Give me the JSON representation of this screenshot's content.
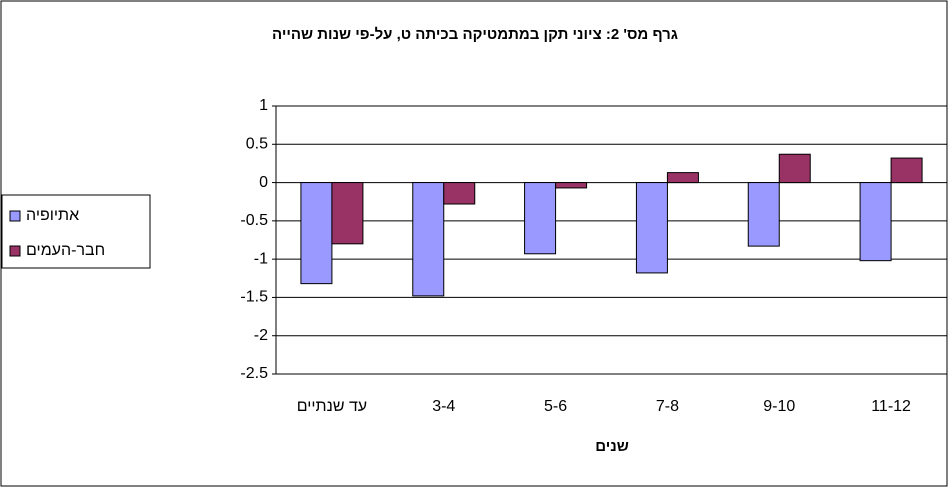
{
  "chart_data": {
    "type": "bar",
    "title": "גרף מס' 2:   ציוני תקן במתמטיקה בכיתה ט, על-פי שנות שהייה",
    "x_label": "שנים",
    "categories": [
      "עד שנתיים",
      "3-4",
      "5-6",
      "7-8",
      "9-10",
      "11-12"
    ],
    "series": [
      {
        "name": "אתיופיה",
        "color": "#9999ff",
        "values": [
          -1.32,
          -1.48,
          -0.93,
          -1.18,
          -0.83,
          -1.02
        ]
      },
      {
        "name": "חבר-העמים",
        "color": "#993366",
        "values": [
          -0.8,
          -0.28,
          -0.07,
          0.13,
          0.37,
          0.32
        ]
      }
    ],
    "ylim": [
      -2.5,
      1
    ],
    "yticks": [
      1,
      0.5,
      0,
      -0.5,
      -1,
      -1.5,
      -2,
      -2.5
    ],
    "grid": true,
    "legend": "left"
  }
}
